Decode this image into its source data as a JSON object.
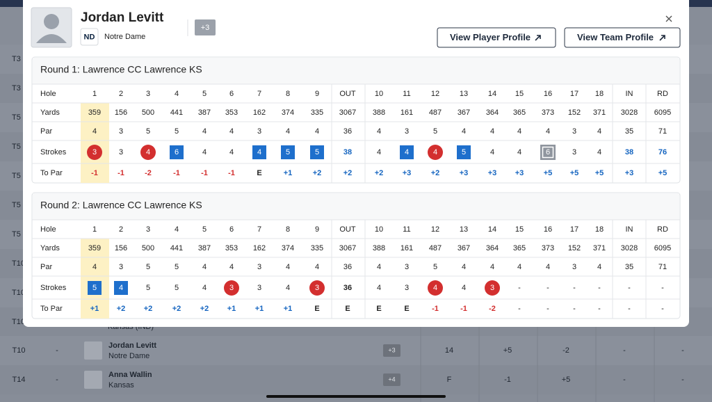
{
  "background": {
    "left_positions": [
      "T3",
      "T3",
      "T5",
      "T5",
      "T5",
      "T5",
      "T5",
      "T10",
      "T10",
      "T10"
    ],
    "partial_team": "Kansas (IND)",
    "players": [
      {
        "pos": "T10",
        "dash": "-",
        "name": "Jordan Levitt",
        "team": "Notre Dame",
        "badge": "+3",
        "cols": [
          14,
          "+5",
          "-2",
          "-",
          "-"
        ]
      },
      {
        "pos": "T14",
        "dash": "-",
        "name": "Anna Wallin",
        "team": "Kansas",
        "badge": "+4",
        "cols": [
          "F",
          "-1",
          "+5",
          "-",
          "-"
        ]
      }
    ]
  },
  "modal": {
    "name": "Jordan Levitt",
    "team": "Notre Dame",
    "badge": "+3",
    "buttons": [
      "View Player Profile",
      "View Team Profile"
    ],
    "rounds": [
      {
        "title": "Round 1: Lawrence CC Lawrence KS",
        "header_label": "Hole",
        "columns": [
          1,
          2,
          3,
          4,
          5,
          6,
          7,
          8,
          9,
          "OUT",
          10,
          11,
          12,
          13,
          14,
          15,
          16,
          17,
          18,
          "IN",
          "RD"
        ],
        "rows": [
          {
            "label": "Yards",
            "values": [
              359,
              156,
              500,
              441,
              387,
              353,
              162,
              374,
              335,
              3067,
              388,
              161,
              487,
              367,
              364,
              365,
              373,
              152,
              371,
              3028,
              6095
            ]
          },
          {
            "label": "Par",
            "values": [
              4,
              3,
              5,
              5,
              4,
              4,
              3,
              4,
              4,
              36,
              4,
              3,
              5,
              4,
              4,
              4,
              4,
              3,
              4,
              35,
              71
            ]
          },
          {
            "label": "Strokes",
            "values": [
              3,
              3,
              4,
              6,
              4,
              4,
              4,
              5,
              5,
              38,
              4,
              4,
              4,
              5,
              4,
              4,
              6,
              3,
              4,
              38,
              76
            ]
          },
          {
            "label": "To Par",
            "values": [
              "-1",
              "-1",
              "-2",
              "-1",
              "-1",
              "-1",
              "E",
              "+1",
              "+2",
              "+2",
              "+2",
              "+3",
              "+2",
              "+3",
              "+3",
              "+3",
              "+5",
              "+5",
              "+5",
              "+3",
              "+5"
            ]
          }
        ]
      },
      {
        "title": "Round 2: Lawrence CC Lawrence KS",
        "header_label": "Hole",
        "columns": [
          1,
          2,
          3,
          4,
          5,
          6,
          7,
          8,
          9,
          "OUT",
          10,
          11,
          12,
          13,
          14,
          15,
          16,
          17,
          18,
          "IN",
          "RD"
        ],
        "rows": [
          {
            "label": "Yards",
            "values": [
              359,
              156,
              500,
              441,
              387,
              353,
              162,
              374,
              335,
              3067,
              388,
              161,
              487,
              367,
              364,
              365,
              373,
              152,
              371,
              3028,
              6095
            ]
          },
          {
            "label": "Par",
            "values": [
              4,
              3,
              5,
              5,
              4,
              4,
              3,
              4,
              4,
              36,
              4,
              3,
              5,
              4,
              4,
              4,
              4,
              3,
              4,
              35,
              71
            ]
          },
          {
            "label": "Strokes",
            "values": [
              5,
              4,
              5,
              5,
              4,
              3,
              3,
              4,
              3,
              36,
              4,
              3,
              4,
              4,
              3,
              "-",
              "-",
              "-",
              "-",
              "-",
              "-"
            ]
          },
          {
            "label": "To Par",
            "values": [
              "+1",
              "+2",
              "+2",
              "+2",
              "+2",
              "+1",
              "+1",
              "+1",
              "E",
              "E",
              "E",
              "E",
              "-1",
              "-1",
              "-2",
              "-",
              "-",
              "-",
              "-",
              "-",
              "-"
            ]
          }
        ]
      }
    ]
  }
}
